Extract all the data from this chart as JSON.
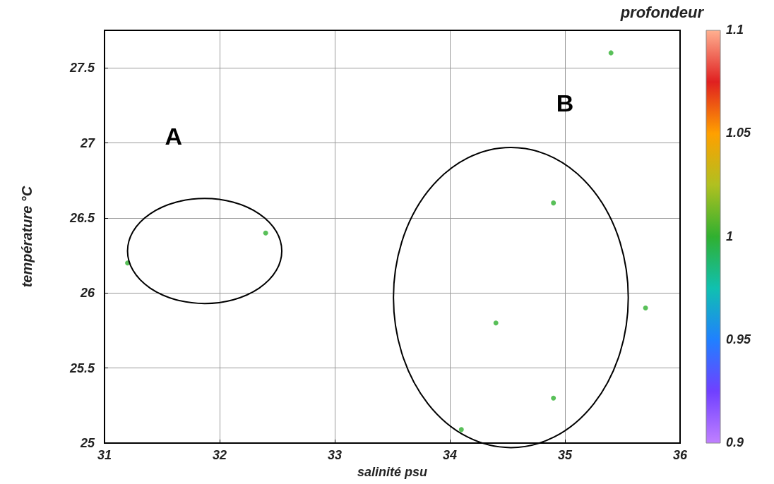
{
  "chart_data": {
    "type": "scatter",
    "xlabel": "salinité psu",
    "ylabel": "température °C",
    "clabel": "profondeur",
    "x": [
      31.2,
      32.4,
      34.1,
      34.4,
      34.9,
      34.9,
      35.4,
      35.7
    ],
    "values": [
      26.2,
      26.4,
      25.09,
      25.8,
      25.3,
      26.6,
      27.6,
      25.9
    ],
    "cvalues": [
      1,
      1,
      1,
      1,
      1,
      1,
      1,
      1
    ],
    "clim": [
      0.9,
      1.1
    ],
    "cticks": [
      0.9,
      0.95,
      1,
      1.05,
      1.1
    ],
    "xlim": [
      31,
      36
    ],
    "xticks": [
      31,
      32,
      33,
      34,
      35,
      36
    ],
    "ylim": [
      25,
      27.75
    ],
    "yticks": [
      25,
      25.5,
      26,
      26.5,
      27,
      27.5
    ],
    "grid": true,
    "marker": "circle",
    "annotations": [
      "A",
      "B"
    ]
  }
}
